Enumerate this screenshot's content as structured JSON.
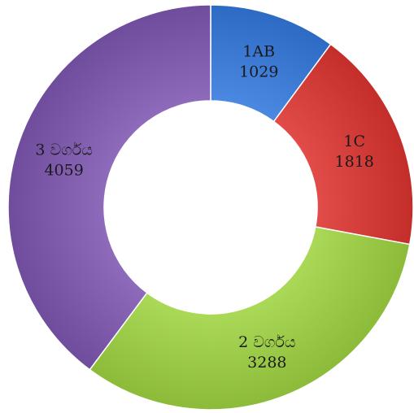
{
  "chart_data": {
    "type": "pie",
    "variant": "donut",
    "legend": "none",
    "slices": [
      {
        "label": "1AB",
        "value": 1029,
        "color": "#3a78d2"
      },
      {
        "label": "1C",
        "value": 1818,
        "color": "#d23c38"
      },
      {
        "label": "2 වර්ගය",
        "value": 3288,
        "color": "#9ac947"
      },
      {
        "label": "3 වර්ගය",
        "value": 4059,
        "color": "#7e5aab"
      }
    ]
  }
}
